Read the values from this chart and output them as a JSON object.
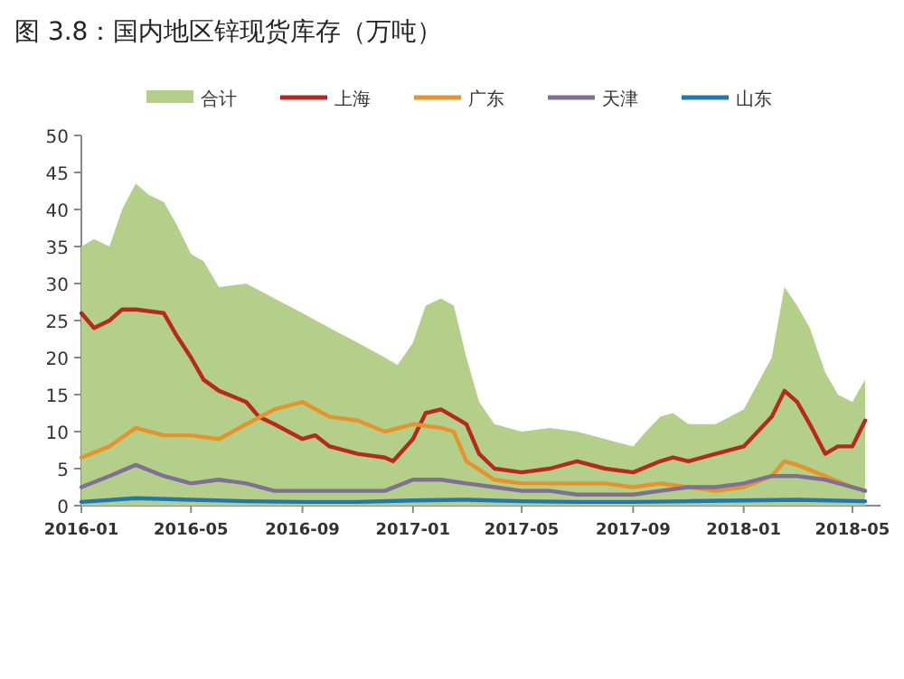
{
  "chart_data": {
    "type": "line",
    "title": "图 3.8：国内地区锌现货库存（万吨）",
    "xlim": [
      "2016-01",
      "2018-06"
    ],
    "xticks": [
      "2016-01",
      "2016-05",
      "2016-09",
      "2017-01",
      "2017-05",
      "2017-09",
      "2018-01",
      "2018-05"
    ],
    "ylim": [
      0,
      50
    ],
    "yticks": [
      0,
      5,
      10,
      15,
      20,
      25,
      30,
      35,
      40,
      45,
      50
    ],
    "grid": false,
    "legend": "top",
    "marker": "none",
    "line_style": "solid",
    "series": [
      {
        "name": "合计",
        "type": "area",
        "color": "#b3cf8a",
        "x": [
          "2016-01-01",
          "2016-01-15",
          "2016-02-01",
          "2016-02-15",
          "2016-03-01",
          "2016-03-15",
          "2016-04-01",
          "2016-04-15",
          "2016-05-01",
          "2016-05-15",
          "2016-06-01",
          "2016-07-01",
          "2016-08-01",
          "2016-09-01",
          "2016-10-01",
          "2016-11-01",
          "2016-12-01",
          "2016-12-15",
          "2017-01-01",
          "2017-01-15",
          "2017-02-01",
          "2017-02-15",
          "2017-03-01",
          "2017-03-15",
          "2017-04-01",
          "2017-05-01",
          "2017-06-01",
          "2017-07-01",
          "2017-08-01",
          "2017-09-01",
          "2017-09-15",
          "2017-10-01",
          "2017-10-15",
          "2017-11-01",
          "2017-12-01",
          "2018-01-01",
          "2018-02-01",
          "2018-02-15",
          "2018-03-01",
          "2018-03-15",
          "2018-04-01",
          "2018-04-15",
          "2018-05-01",
          "2018-05-15"
        ],
        "values": [
          35,
          36,
          35,
          40,
          43.5,
          42,
          41,
          38,
          34,
          33,
          29.5,
          30,
          28,
          26,
          24,
          22,
          20,
          19,
          22,
          27,
          28,
          27,
          20,
          14,
          11,
          10,
          10.5,
          10,
          9,
          8,
          10,
          12,
          12.5,
          11,
          11,
          13,
          20,
          29.5,
          27,
          24,
          18,
          15,
          14,
          17
        ]
      },
      {
        "name": "上海",
        "color": "#b8281e",
        "x": [
          "2016-01-01",
          "2016-01-15",
          "2016-02-01",
          "2016-02-15",
          "2016-03-01",
          "2016-04-01",
          "2016-04-15",
          "2016-05-01",
          "2016-05-15",
          "2016-06-01",
          "2016-07-01",
          "2016-07-15",
          "2016-08-01",
          "2016-09-01",
          "2016-09-15",
          "2016-10-01",
          "2016-11-01",
          "2016-12-01",
          "2016-12-10",
          "2017-01-01",
          "2017-01-15",
          "2017-02-01",
          "2017-02-15",
          "2017-03-01",
          "2017-03-15",
          "2017-04-01",
          "2017-05-01",
          "2017-06-01",
          "2017-07-01",
          "2017-08-01",
          "2017-09-01",
          "2017-10-01",
          "2017-10-15",
          "2017-11-01",
          "2017-12-01",
          "2018-01-01",
          "2018-02-01",
          "2018-02-15",
          "2018-03-01",
          "2018-03-15",
          "2018-04-01",
          "2018-04-15",
          "2018-05-01",
          "2018-05-15"
        ],
        "values": [
          26,
          24,
          25,
          26.5,
          26.5,
          26,
          23,
          20,
          17,
          15.5,
          14,
          12,
          11,
          9,
          9.5,
          8,
          7,
          6.5,
          6,
          9,
          12.5,
          13,
          12,
          11,
          7,
          5,
          4.5,
          5,
          6,
          5,
          4.5,
          6,
          6.5,
          6,
          7,
          8,
          12,
          15.5,
          14,
          11,
          7,
          8,
          8,
          11.5
        ]
      },
      {
        "name": "广东",
        "color": "#e8922a",
        "x": [
          "2016-01-01",
          "2016-02-01",
          "2016-03-01",
          "2016-04-01",
          "2016-05-01",
          "2016-06-01",
          "2016-07-01",
          "2016-08-01",
          "2016-09-01",
          "2016-10-01",
          "2016-11-01",
          "2016-12-01",
          "2017-01-01",
          "2017-02-01",
          "2017-02-15",
          "2017-03-01",
          "2017-04-01",
          "2017-05-01",
          "2017-06-01",
          "2017-07-01",
          "2017-08-01",
          "2017-09-01",
          "2017-10-01",
          "2017-11-01",
          "2017-12-01",
          "2018-01-01",
          "2018-02-01",
          "2018-02-15",
          "2018-03-01",
          "2018-04-01",
          "2018-05-01",
          "2018-05-15"
        ],
        "values": [
          6.5,
          8,
          10.5,
          9.5,
          9.5,
          9,
          11,
          13,
          14,
          12,
          11.5,
          10,
          11,
          10.5,
          10,
          6,
          3.5,
          3,
          3,
          3,
          3,
          2.5,
          3,
          2.5,
          2,
          2.5,
          4,
          6,
          5.5,
          4,
          2.5,
          2
        ]
      },
      {
        "name": "天津",
        "color": "#7f6e99",
        "x": [
          "2016-01-01",
          "2016-02-01",
          "2016-03-01",
          "2016-04-01",
          "2016-05-01",
          "2016-06-01",
          "2016-07-01",
          "2016-08-01",
          "2016-09-01",
          "2016-10-01",
          "2016-11-01",
          "2016-12-01",
          "2017-01-01",
          "2017-02-01",
          "2017-03-01",
          "2017-04-01",
          "2017-05-01",
          "2017-06-01",
          "2017-07-01",
          "2017-08-01",
          "2017-09-01",
          "2017-10-01",
          "2017-11-01",
          "2017-12-01",
          "2018-01-01",
          "2018-02-01",
          "2018-03-01",
          "2018-04-01",
          "2018-05-01",
          "2018-05-15"
        ],
        "values": [
          2.5,
          4,
          5.5,
          4,
          3,
          3.5,
          3,
          2,
          2,
          2,
          2,
          2,
          3.5,
          3.5,
          3,
          2.5,
          2,
          2,
          1.5,
          1.5,
          1.5,
          2,
          2.5,
          2.5,
          3,
          4,
          4,
          3.5,
          2.5,
          2
        ]
      },
      {
        "name": "山东",
        "color": "#1f78b4",
        "x": [
          "2016-01-01",
          "2016-03-01",
          "2016-05-01",
          "2016-07-01",
          "2016-09-01",
          "2016-11-01",
          "2017-01-01",
          "2017-03-01",
          "2017-05-01",
          "2017-07-01",
          "2017-09-01",
          "2017-11-01",
          "2018-01-01",
          "2018-03-01",
          "2018-05-15"
        ],
        "values": [
          0.5,
          1,
          0.8,
          0.6,
          0.5,
          0.5,
          0.7,
          0.8,
          0.6,
          0.5,
          0.5,
          0.6,
          0.7,
          0.8,
          0.6
        ]
      }
    ]
  }
}
